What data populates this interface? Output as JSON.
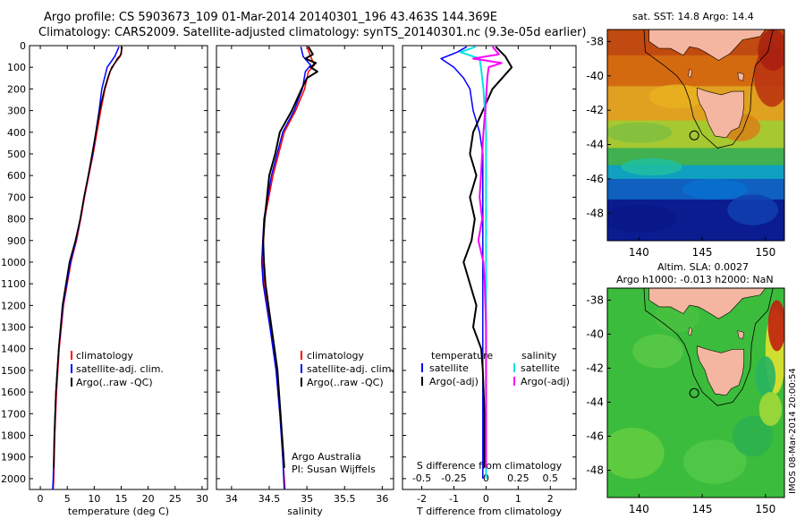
{
  "header": {
    "line1": "Argo profile: CS 5903673_109 01-Mar-2014 20140301_196 43.463S 144.369E",
    "line2": "Climatology: CARS2009. Satellite-adjusted climatology: synTS_20140301.nc (9.3e-05d earlier)"
  },
  "side_text": "IMOS 08-Mar-2014 20:00:54",
  "colors": {
    "climatology": "#ff0000",
    "satellite": "#0000ff",
    "argo": "#000000",
    "sat_cyan": "#00e5e5",
    "argo_magenta": "#ff00ff",
    "land": "#f4b6a0"
  },
  "chart_data": [
    {
      "type": "line",
      "xlabel": "temperature (deg C)",
      "xlim": [
        -2,
        31
      ],
      "ylim": [
        0,
        2050
      ],
      "yticks": [
        0,
        100,
        200,
        300,
        400,
        500,
        600,
        700,
        800,
        900,
        1000,
        1100,
        1200,
        1300,
        1400,
        1500,
        1600,
        1700,
        1800,
        1900,
        2000
      ],
      "xticks": [
        0,
        5,
        10,
        15,
        20,
        25,
        30
      ],
      "legend": [
        "climatology",
        "satellite-adj. clim.",
        "Argo(..raw -QC)"
      ],
      "legend_position": "lower-center",
      "series": [
        {
          "name": "climatology",
          "depth": [
            5,
            50,
            100,
            150,
            200,
            300,
            400,
            500,
            600,
            700,
            800,
            900,
            1000,
            1200,
            1400,
            1600,
            1800,
            2000,
            2050
          ],
          "values": [
            15.2,
            14.8,
            13.2,
            12.6,
            12.0,
            11.2,
            10.5,
            9.8,
            9.0,
            8.2,
            7.5,
            6.7,
            5.7,
            4.3,
            3.5,
            3.0,
            2.7,
            2.5,
            2.4
          ]
        },
        {
          "name": "satellite-adj. clim.",
          "depth": [
            5,
            50,
            100,
            150,
            200,
            300,
            400,
            500,
            600,
            700,
            800,
            900,
            1000,
            1200,
            1400,
            1600,
            1800,
            2000,
            2050
          ],
          "values": [
            14.6,
            13.8,
            12.4,
            11.9,
            11.4,
            10.9,
            10.3,
            9.7,
            8.9,
            8.1,
            7.4,
            6.6,
            5.6,
            4.2,
            3.4,
            2.9,
            2.6,
            2.4,
            2.3
          ]
        },
        {
          "name": "Argo(..raw -QC)",
          "depth": [
            5,
            40,
            60,
            90,
            120,
            150,
            200,
            300,
            400,
            500,
            600,
            700,
            800,
            900,
            1000,
            1200,
            1400,
            1600,
            1800,
            1950
          ],
          "values": [
            15.1,
            15.0,
            14.3,
            13.6,
            12.9,
            12.5,
            11.9,
            11.0,
            10.3,
            9.6,
            8.9,
            8.1,
            7.4,
            6.5,
            5.4,
            4.1,
            3.4,
            2.9,
            2.6,
            2.5
          ]
        }
      ]
    },
    {
      "type": "line",
      "xlabel": "salinity",
      "xlim": [
        33.8,
        36.15
      ],
      "ylim": [
        0,
        2050
      ],
      "xticks": [
        34,
        34.5,
        35,
        35.5,
        36
      ],
      "legend": [
        "climatology",
        "satellite-adj. clim.",
        "Argo(..raw -QC)"
      ],
      "legend_position": "lower-right",
      "annotation": [
        "Argo Australia",
        "PI: Susan Wijffels"
      ],
      "series": [
        {
          "name": "climatology",
          "depth": [
            5,
            50,
            90,
            120,
            200,
            300,
            400,
            600,
            800,
            1000,
            1100,
            1300,
            1500,
            1700,
            1900,
            2050
          ],
          "values": [
            35.0,
            35.05,
            35.1,
            35.02,
            34.97,
            34.85,
            34.7,
            34.55,
            34.44,
            34.41,
            34.43,
            34.52,
            34.6,
            34.65,
            34.68,
            34.71
          ]
        },
        {
          "name": "satellite-adj. clim.",
          "depth": [
            5,
            50,
            90,
            120,
            200,
            300,
            400,
            600,
            800,
            1000,
            1100,
            1300,
            1500,
            1700,
            1900,
            2050
          ],
          "values": [
            34.92,
            34.95,
            35.05,
            34.98,
            34.94,
            34.83,
            34.68,
            34.53,
            34.43,
            34.4,
            34.42,
            34.51,
            34.59,
            34.64,
            34.68,
            34.7
          ]
        },
        {
          "name": "Argo(..raw -QC)",
          "depth": [
            5,
            40,
            60,
            80,
            100,
            120,
            150,
            200,
            300,
            400,
            500,
            600,
            700,
            800,
            900,
            1000,
            1100,
            1200,
            1300,
            1400,
            1500,
            1600,
            1700,
            1800,
            1900,
            1950
          ],
          "values": [
            35.02,
            35.08,
            34.98,
            35.12,
            35.05,
            35.14,
            35.0,
            34.93,
            34.8,
            34.64,
            34.58,
            34.5,
            34.47,
            34.44,
            34.42,
            34.43,
            34.45,
            34.49,
            34.53,
            34.57,
            34.61,
            34.63,
            34.65,
            34.67,
            34.69,
            34.7
          ]
        }
      ]
    },
    {
      "type": "line",
      "xlabel": "T difference from climatology",
      "x2label": "S difference from climatology",
      "xlim": [
        -2.6,
        2.8
      ],
      "x2lim": [
        -0.65,
        0.7
      ],
      "ylim": [
        0,
        2050
      ],
      "xticks": [
        -2,
        -1,
        0,
        1,
        2
      ],
      "x2ticks": [
        -0.5,
        -0.25,
        0,
        0.25,
        0.5
      ],
      "x2ticklabels": [
        "-0.5",
        "-0.25",
        "0",
        "0.25",
        "0.5"
      ],
      "legend_temperature": [
        "temperature",
        "satellite",
        "Argo(-adj)"
      ],
      "legend_salinity": [
        "salinity",
        "satellite",
        "Argo(-adj)"
      ],
      "series": [
        {
          "name": "satellite",
          "depth": [
            5,
            30,
            60,
            100,
            150,
            200,
            300,
            400,
            500,
            600,
            800,
            1000,
            1200,
            1400,
            1600,
            1800,
            2000
          ],
          "values": [
            -0.6,
            -0.9,
            -1.4,
            -1.0,
            -0.7,
            -0.5,
            -0.4,
            -0.2,
            -0.1,
            -0.1,
            -0.1,
            -0.1,
            -0.1,
            -0.1,
            -0.1,
            -0.1,
            -0.1
          ]
        },
        {
          "name": "Argo(-adj)",
          "depth": [
            5,
            50,
            100,
            150,
            200,
            300,
            400,
            500,
            600,
            700,
            800,
            900,
            1000,
            1100,
            1200,
            1300,
            1400,
            1500,
            1700,
            1950
          ],
          "values": [
            0.3,
            0.6,
            0.8,
            0.5,
            0.2,
            -0.1,
            -0.4,
            -0.5,
            -0.3,
            -0.5,
            -0.35,
            -0.45,
            -0.7,
            -0.5,
            -0.3,
            -0.4,
            -0.15,
            -0.1,
            -0.05,
            -0.05
          ]
        },
        {
          "name": "satellite salinity",
          "depth": [
            5,
            30,
            60,
            100,
            150,
            200,
            300,
            400,
            500,
            700,
            900,
            1100,
            1300,
            1500,
            1700,
            1900,
            2000
          ],
          "values": [
            -0.08,
            -0.2,
            -0.05,
            -0.04,
            -0.03,
            -0.02,
            -0.01,
            0.0,
            0.0,
            0.0,
            0.0,
            0.0,
            0.0,
            0.0,
            0.0,
            0.0,
            0.0
          ]
        },
        {
          "name": "Argo(-adj) salinity",
          "depth": [
            5,
            40,
            60,
            80,
            100,
            150,
            250,
            400,
            500,
            600,
            700,
            800,
            900,
            1000,
            1100,
            1300,
            1500,
            1700,
            1950
          ],
          "values": [
            0.05,
            0.1,
            -0.1,
            0.12,
            0.02,
            0.01,
            0.0,
            -0.02,
            -0.03,
            -0.04,
            -0.05,
            -0.03,
            -0.06,
            -0.02,
            -0.01,
            0.0,
            0.0,
            0.0,
            0.0
          ]
        }
      ]
    },
    {
      "type": "heatmap",
      "title": "sat. SST: 14.8 Argo: 14.4",
      "xlim": [
        137.5,
        151.5
      ],
      "ylim": [
        -49.6,
        -37.3
      ],
      "xticks": [
        140,
        145,
        150
      ],
      "yticks": [
        -38,
        -40,
        -42,
        -44,
        -46,
        -48
      ],
      "marker": {
        "lon": 144.369,
        "lat": -43.463
      }
    },
    {
      "type": "heatmap",
      "title_line1": "Altim. SLA: 0.0027",
      "title_line2": "Argo h1000: -0.013 h2000: NaN",
      "xlim": [
        137.5,
        151.5
      ],
      "ylim": [
        -49.6,
        -37.3
      ],
      "xticks": [
        140,
        145,
        150
      ],
      "yticks": [
        -38,
        -40,
        -42,
        -44,
        -46,
        -48
      ],
      "marker": {
        "lon": 144.369,
        "lat": -43.463
      }
    }
  ]
}
